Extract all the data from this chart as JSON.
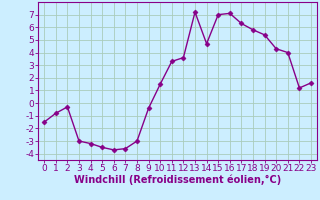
{
  "x": [
    0,
    1,
    2,
    3,
    4,
    5,
    6,
    7,
    8,
    9,
    10,
    11,
    12,
    13,
    14,
    15,
    16,
    17,
    18,
    19,
    20,
    21,
    22,
    23
  ],
  "y": [
    -1.5,
    -0.8,
    -0.3,
    -3.0,
    -3.2,
    -3.5,
    -3.7,
    -3.6,
    -3.0,
    -0.4,
    1.5,
    3.3,
    3.6,
    7.2,
    4.7,
    7.0,
    7.1,
    6.3,
    5.8,
    5.4,
    4.3,
    4.0,
    1.2,
    1.6
  ],
  "line_color": "#880088",
  "marker": "D",
  "markersize": 2.5,
  "linewidth": 1.0,
  "xlabel": "Windchill (Refroidissement éolien,°C)",
  "xlabel_fontsize": 7,
  "xticks": [
    0,
    1,
    2,
    3,
    4,
    5,
    6,
    7,
    8,
    9,
    10,
    11,
    12,
    13,
    14,
    15,
    16,
    17,
    18,
    19,
    20,
    21,
    22,
    23
  ],
  "yticks": [
    -4,
    -3,
    -2,
    -1,
    0,
    1,
    2,
    3,
    4,
    5,
    6,
    7
  ],
  "ylim": [
    -4.5,
    8.0
  ],
  "xlim": [
    -0.5,
    23.5
  ],
  "bg_color": "#cceeff",
  "grid_color": "#aaccbb",
  "tick_fontsize": 6.5
}
